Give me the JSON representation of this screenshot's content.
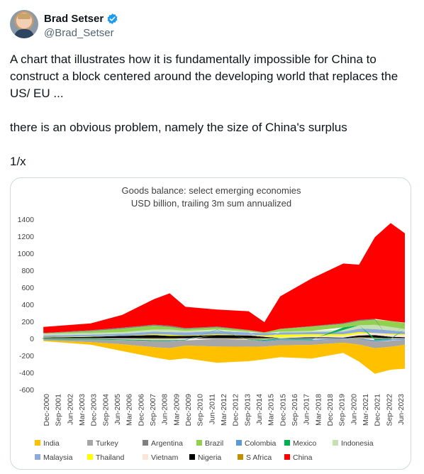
{
  "author": {
    "name": "Brad Setser",
    "handle": "@Brad_Setser",
    "verified_color": "#1d9bf0"
  },
  "tweet": {
    "paragraphs": [
      "A chart that illustrates how it is fundamentally impossible for China to construct a block centered around the developing world that replaces the US/ EU ...",
      "there is an obvious problem, namely the size of China's surplus",
      "1/x"
    ]
  },
  "chart_data": {
    "type": "area",
    "title": "Goods balance: select emerging economies",
    "subtitle": "USD billion, trailing 3m sum annualized",
    "ylim": [
      -600,
      1400
    ],
    "y_ticks": [
      "1400",
      "1200",
      "1000",
      "800",
      "600",
      "400",
      "200",
      "0",
      "-200",
      "-400",
      "-600"
    ],
    "x_tick_labels": [
      "Dec-2000",
      "Sep-2001",
      "Jun-2002",
      "Mar-2003",
      "Dec-2003",
      "Sep-2004",
      "Jun-2005",
      "Mar-2006",
      "Dec-2006",
      "Sep-2007",
      "Jun-2008",
      "Mar-2009",
      "Dec-2009",
      "Sep-2010",
      "Jun-2011",
      "Mar-2012",
      "Dec-2012",
      "Sep-2013",
      "Jun-2014",
      "Mar-2015",
      "Dec-2015",
      "Sep-2016",
      "Jun-2017",
      "Mar-2018",
      "Dec-2018",
      "Sep-2019",
      "Jun-2020",
      "Mar-2021",
      "Dec-2021",
      "Sep-2022",
      "Jun-2023"
    ],
    "x_years": [
      2001,
      2004,
      2006,
      2008,
      2009,
      2010,
      2012,
      2014,
      2015,
      2016,
      2018,
      2020,
      2021,
      2022,
      2023,
      2023.9
    ],
    "series": [
      {
        "name": "China",
        "color": "#ff0000",
        "values": [
          70,
          80,
          150,
          300,
          380,
          250,
          200,
          220,
          120,
          380,
          560,
          700,
          650,
          960,
          1150,
          1050
        ]
      },
      {
        "name": "India",
        "color": "#ffc000",
        "values": [
          -10,
          -30,
          -80,
          -120,
          -140,
          -150,
          -190,
          -170,
          -150,
          -140,
          -160,
          -120,
          -200,
          -300,
          -270,
          -280
        ]
      },
      {
        "name": "Turkey",
        "color": "#a6a6a6",
        "values": [
          -10,
          -30,
          -50,
          -70,
          -80,
          -60,
          -90,
          -80,
          -60,
          -60,
          -50,
          -40,
          -60,
          -80,
          -70,
          -60
        ]
      },
      {
        "name": "Argentina",
        "color": "#808080",
        "values": [
          5,
          10,
          12,
          12,
          15,
          12,
          10,
          5,
          2,
          3,
          5,
          10,
          12,
          10,
          -5,
          5
        ]
      },
      {
        "name": "Brazil",
        "color": "#92d050",
        "values": [
          5,
          20,
          40,
          45,
          30,
          20,
          25,
          15,
          10,
          30,
          50,
          40,
          50,
          60,
          70,
          70
        ]
      },
      {
        "name": "Colombia",
        "color": "#5b9bd5",
        "values": [
          0,
          2,
          0,
          -2,
          -5,
          -3,
          5,
          -2,
          -10,
          -10,
          -10,
          -10,
          -12,
          -15,
          -12,
          -10
        ]
      },
      {
        "name": "Mexico",
        "color": "#00b050",
        "values": [
          -10,
          -10,
          -8,
          -10,
          -8,
          -5,
          0,
          -5,
          -10,
          -10,
          -10,
          30,
          0,
          -20,
          -10,
          0
        ]
      },
      {
        "name": "Indonesia",
        "color": "#c5e0b4",
        "values": [
          20,
          20,
          20,
          25,
          30,
          20,
          15,
          10,
          -5,
          10,
          15,
          20,
          40,
          50,
          40,
          30
        ]
      },
      {
        "name": "Malaysia",
        "color": "#8ea9db",
        "values": [
          20,
          20,
          25,
          30,
          30,
          35,
          35,
          30,
          25,
          25,
          25,
          30,
          40,
          45,
          40,
          30
        ]
      },
      {
        "name": "Thailand",
        "color": "#ffff00",
        "values": [
          5,
          5,
          0,
          10,
          15,
          5,
          10,
          0,
          10,
          30,
          20,
          20,
          20,
          0,
          10,
          10
        ]
      },
      {
        "name": "Vietnam",
        "color": "#fbe5d6",
        "values": [
          -2,
          -3,
          -5,
          -10,
          -10,
          -10,
          0,
          5,
          5,
          10,
          15,
          20,
          20,
          25,
          25,
          25
        ]
      },
      {
        "name": "Nigeria",
        "color": "#000000",
        "values": [
          10,
          20,
          30,
          40,
          30,
          30,
          40,
          35,
          20,
          5,
          15,
          10,
          20,
          30,
          20,
          15
        ]
      },
      {
        "name": "S Africa",
        "color": "#bf9000",
        "values": [
          0,
          0,
          -5,
          -10,
          -10,
          -5,
          -5,
          -10,
          -10,
          0,
          -5,
          0,
          15,
          10,
          0,
          -5
        ]
      }
    ],
    "legend": {
      "row1": [
        "India",
        "Turkey",
        "Argentina",
        "Brazil",
        "Colombia",
        "Mexico",
        "Indonesia"
      ],
      "row2": [
        "Malaysia",
        "Thailand",
        "Vietnam",
        "Nigeria",
        "S Africa",
        "China"
      ],
      "placement": "bottom"
    },
    "grid": false
  }
}
